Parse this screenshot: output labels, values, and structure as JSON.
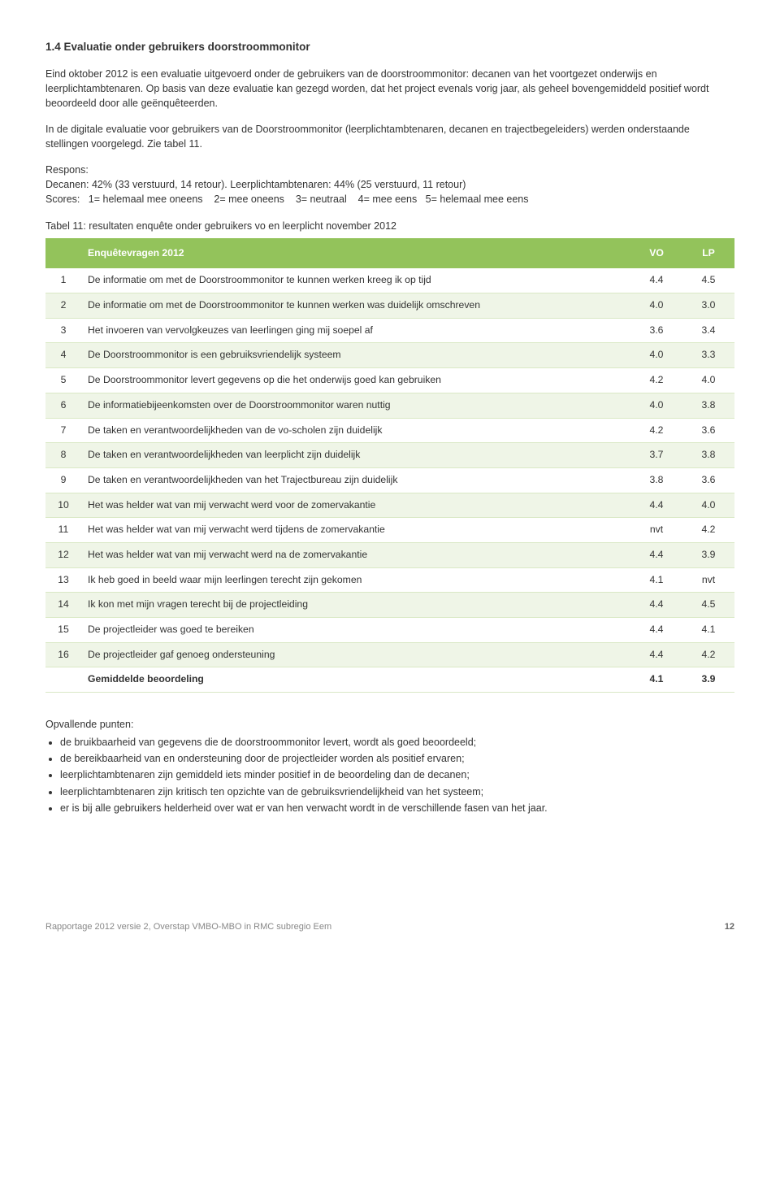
{
  "heading": "1.4 Evaluatie onder gebruikers doorstroommonitor",
  "para1": "Eind oktober 2012 is een evaluatie uitgevoerd onder de gebruikers van de doorstroommonitor: decanen van het voortgezet onderwijs en leerplichtambtenaren. Op basis van deze evaluatie kan gezegd worden, dat het project evenals vorig jaar, als geheel bovengemiddeld positief wordt beoordeeld door alle geënquêteerden.",
  "para2": "In de digitale evaluatie voor gebruikers van de Doorstroommonitor (leerplichtambtenaren, decanen en trajectbegeleiders) werden onderstaande stellingen voorgelegd. Zie tabel 11.",
  "respons_label": "Respons:",
  "respons_line1": "Decanen: 42% (33 verstuurd, 14 retour). Leerplichtambtenaren: 44%  (25 verstuurd, 11 retour)",
  "respons_line2": "Scores:   1= helemaal mee oneens    2= mee oneens    3= neutraal    4= mee eens   5= helemaal mee eens",
  "table_caption": "Tabel 11: resultaten enquête onder gebruikers vo en leerplicht november 2012",
  "table": {
    "header": {
      "q": "Enquêtevragen 2012",
      "vo": "VO",
      "lp": "LP"
    },
    "rows": [
      {
        "n": "1",
        "q": "De informatie om met de Doorstroommonitor te kunnen werken kreeg ik op tijd",
        "vo": "4.4",
        "lp": "4.5"
      },
      {
        "n": "2",
        "q": "De informatie om met de Doorstroommonitor te kunnen werken was duidelijk omschreven",
        "vo": "4.0",
        "lp": "3.0"
      },
      {
        "n": "3",
        "q": "Het invoeren van vervolgkeuzes van leerlingen ging mij soepel af",
        "vo": "3.6",
        "lp": "3.4"
      },
      {
        "n": "4",
        "q": "De Doorstroommonitor is een gebruiksvriendelijk systeem",
        "vo": "4.0",
        "lp": "3.3"
      },
      {
        "n": "5",
        "q": "De Doorstroommonitor levert gegevens op die het onderwijs goed kan gebruiken",
        "vo": "4.2",
        "lp": "4.0"
      },
      {
        "n": "6",
        "q": "De informatiebijeenkomsten over de Doorstroommonitor waren nuttig",
        "vo": "4.0",
        "lp": "3.8"
      },
      {
        "n": "7",
        "q": "De taken en verantwoordelijkheden van de vo-scholen zijn duidelijk",
        "vo": "4.2",
        "lp": "3.6"
      },
      {
        "n": "8",
        "q": "De taken en verantwoordelijkheden van leerplicht zijn duidelijk",
        "vo": "3.7",
        "lp": "3.8"
      },
      {
        "n": "9",
        "q": "De  taken en verantwoordelijkheden van het Trajectbureau zijn duidelijk",
        "vo": "3.8",
        "lp": "3.6"
      },
      {
        "n": "10",
        "q": "Het was helder wat van mij verwacht werd voor de zomervakantie",
        "vo": "4.4",
        "lp": "4.0"
      },
      {
        "n": "11",
        "q": "Het was helder wat van mij verwacht werd tijdens de zomervakantie",
        "vo": "nvt",
        "lp": "4.2"
      },
      {
        "n": "12",
        "q": "Het was helder wat van mij verwacht werd na de zomervakantie",
        "vo": "4.4",
        "lp": "3.9"
      },
      {
        "n": "13",
        "q": "Ik heb goed in beeld waar mijn leerlingen terecht zijn gekomen",
        "vo": "4.1",
        "lp": "nvt"
      },
      {
        "n": "14",
        "q": "Ik kon met mijn vragen terecht bij de projectleiding",
        "vo": "4.4",
        "lp": "4.5"
      },
      {
        "n": "15",
        "q": "De projectleider was goed te bereiken",
        "vo": "4.4",
        "lp": "4.1"
      },
      {
        "n": "16",
        "q": "De projectleider gaf genoeg ondersteuning",
        "vo": "4.4",
        "lp": "4.2"
      }
    ],
    "total": {
      "n": "",
      "q": "Gemiddelde beoordeling",
      "vo": "4.1",
      "lp": "3.9"
    }
  },
  "opvallende_label": "Opvallende punten:",
  "bullets": [
    "de bruikbaarheid van gegevens die de doorstroommonitor levert, wordt als goed beoordeeld;",
    "de bereikbaarheid van en ondersteuning door de projectleider worden als positief ervaren;",
    "leerplichtambtenaren zijn gemiddeld iets minder positief in de beoordeling dan de decanen;",
    "leerplichtambtenaren zijn kritisch ten opzichte van de gebruiksvriendelijkheid van het systeem;",
    "er is bij alle gebruikers helderheid over wat er van hen verwacht wordt in de verschillende fasen van het jaar."
  ],
  "footer_left": "Rapportage 2012 versie 2, Overstap VMBO-MBO in RMC subregio Eem",
  "footer_pagenum": "12",
  "colors": {
    "header_bg": "#93c35b",
    "header_text": "#ffffff",
    "row_alt_bg": "#eff5e7",
    "row_border": "#d9e8c5"
  }
}
